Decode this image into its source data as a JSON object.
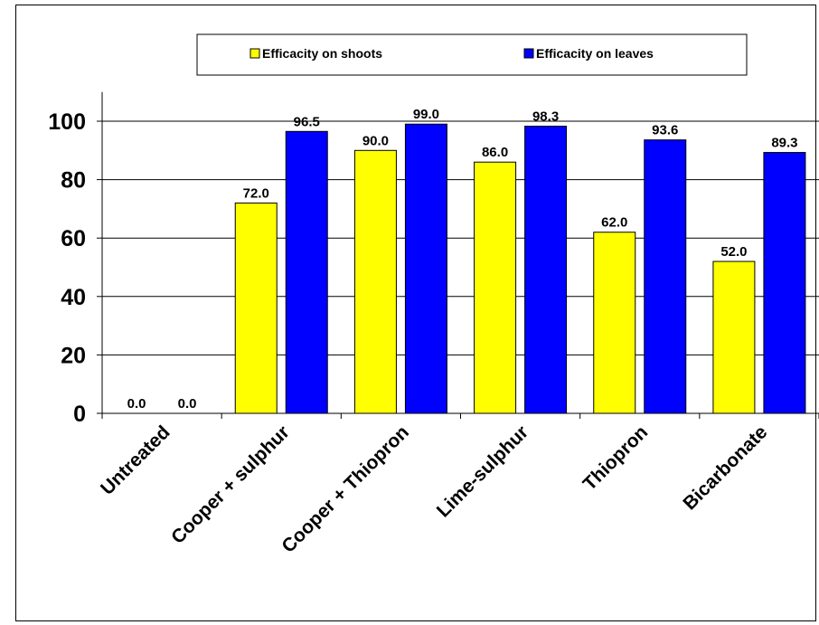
{
  "chart_data": {
    "type": "bar",
    "title": "",
    "xlabel": "",
    "ylabel": "",
    "categories": [
      "Untreated",
      "Cooper + sulphur",
      "Cooper + Thiopron",
      "Lime-sulphur",
      "Thiopron",
      "Bicarbonate"
    ],
    "series": [
      {
        "name": "Efficacity on shoots",
        "color": "#ffff00",
        "values": [
          0.0,
          72.0,
          90.0,
          86.0,
          62.0,
          52.0
        ]
      },
      {
        "name": "Efficacity on leaves",
        "color": "#0000ff",
        "values": [
          0.0,
          96.5,
          99.0,
          98.3,
          93.6,
          89.3
        ]
      }
    ],
    "data_labels": [
      [
        "0.0",
        "72.0",
        "90.0",
        "86.0",
        "62.0",
        "52.0"
      ],
      [
        "0.0",
        "96.5",
        "99.0",
        "98.3",
        "93.6",
        "89.3"
      ]
    ],
    "ylim": [
      0,
      110
    ],
    "yticks": [
      0,
      20,
      40,
      60,
      80,
      100
    ],
    "ytick_labels": [
      "0",
      "20",
      "40",
      "60",
      "80",
      "100"
    ],
    "grid": true,
    "legend_position": "top"
  }
}
